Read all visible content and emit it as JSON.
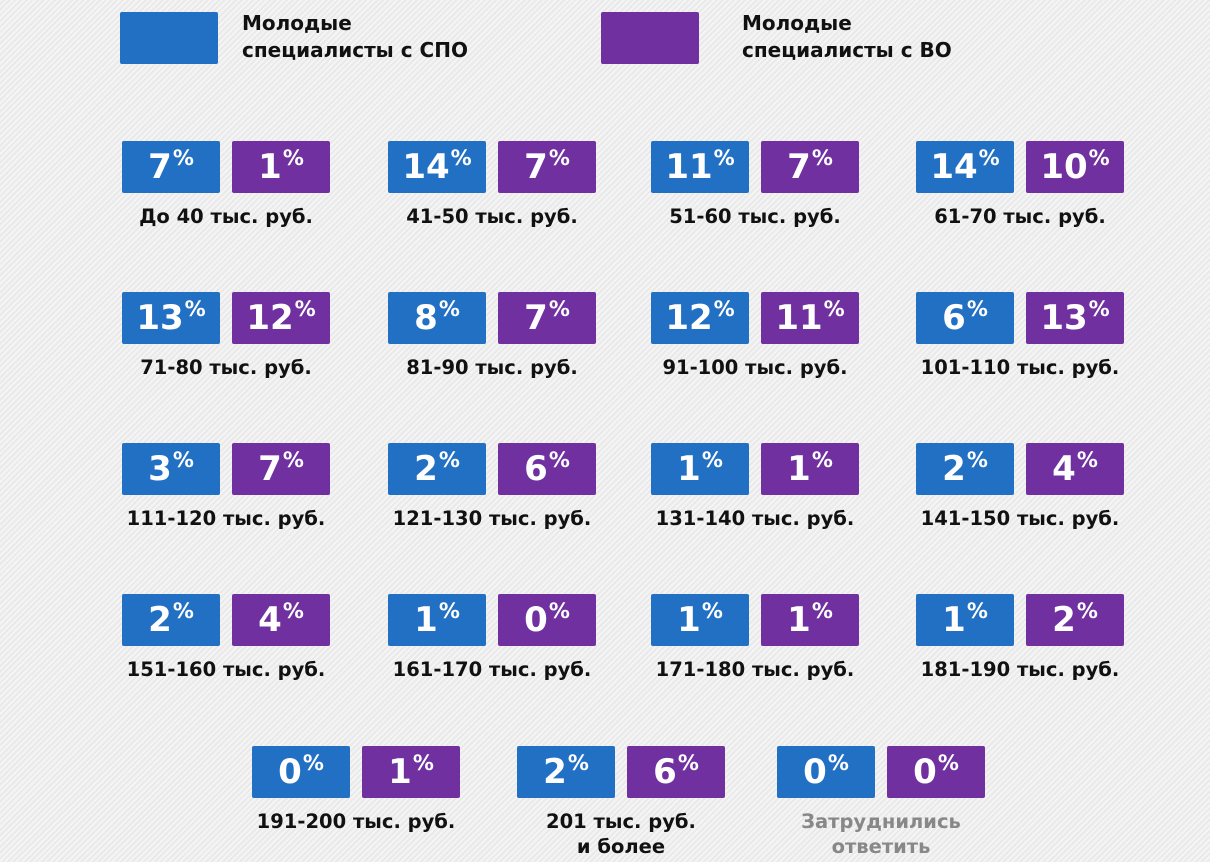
{
  "legend": [
    {
      "label_line1": "Молодые",
      "label_line2": "специалисты с СПО",
      "color": "#2270c4"
    },
    {
      "label_line1": "Молодые",
      "label_line2": "специалисты с ВО",
      "color": "#7030a0"
    }
  ],
  "chart_data": {
    "type": "table",
    "series": [
      {
        "name": "Молодые специалисты с СПО",
        "color": "#2270c4"
      },
      {
        "name": "Молодые специалисты с ВО",
        "color": "#7030a0"
      }
    ],
    "unit": "%",
    "categories": [
      {
        "label": "До 40 тыс. руб.",
        "spo": 7,
        "vo": 1
      },
      {
        "label": "41-50 тыс. руб.",
        "spo": 14,
        "vo": 7
      },
      {
        "label": "51-60 тыс. руб.",
        "spo": 11,
        "vo": 7
      },
      {
        "label": "61-70 тыс. руб.",
        "spo": 14,
        "vo": 10
      },
      {
        "label": "71-80 тыс. руб.",
        "spo": 13,
        "vo": 12
      },
      {
        "label": "81-90 тыс. руб.",
        "spo": 8,
        "vo": 7
      },
      {
        "label": "91-100 тыс. руб.",
        "spo": 12,
        "vo": 11
      },
      {
        "label": "101-110 тыс. руб.",
        "spo": 6,
        "vo": 13
      },
      {
        "label": "111-120 тыс. руб.",
        "spo": 3,
        "vo": 7
      },
      {
        "label": "121-130 тыс. руб.",
        "spo": 2,
        "vo": 6
      },
      {
        "label": "131-140 тыс. руб.",
        "spo": 1,
        "vo": 1
      },
      {
        "label": "141-150 тыс. руб.",
        "spo": 2,
        "vo": 4
      },
      {
        "label": "151-160 тыс. руб.",
        "spo": 2,
        "vo": 4
      },
      {
        "label": "161-170 тыс. руб.",
        "spo": 1,
        "vo": 0
      },
      {
        "label": "171-180 тыс. руб.",
        "spo": 1,
        "vo": 1
      },
      {
        "label": "181-190 тыс. руб.",
        "spo": 1,
        "vo": 2
      },
      {
        "label": "191-200 тыс. руб.",
        "spo": 0,
        "vo": 1
      },
      {
        "label": "201 тыс. руб.",
        "label2": "и более",
        "spo": 2,
        "vo": 6
      },
      {
        "label": "Затруднились",
        "label2": "ответить",
        "spo": 0,
        "vo": 0,
        "muted": true
      }
    ]
  }
}
